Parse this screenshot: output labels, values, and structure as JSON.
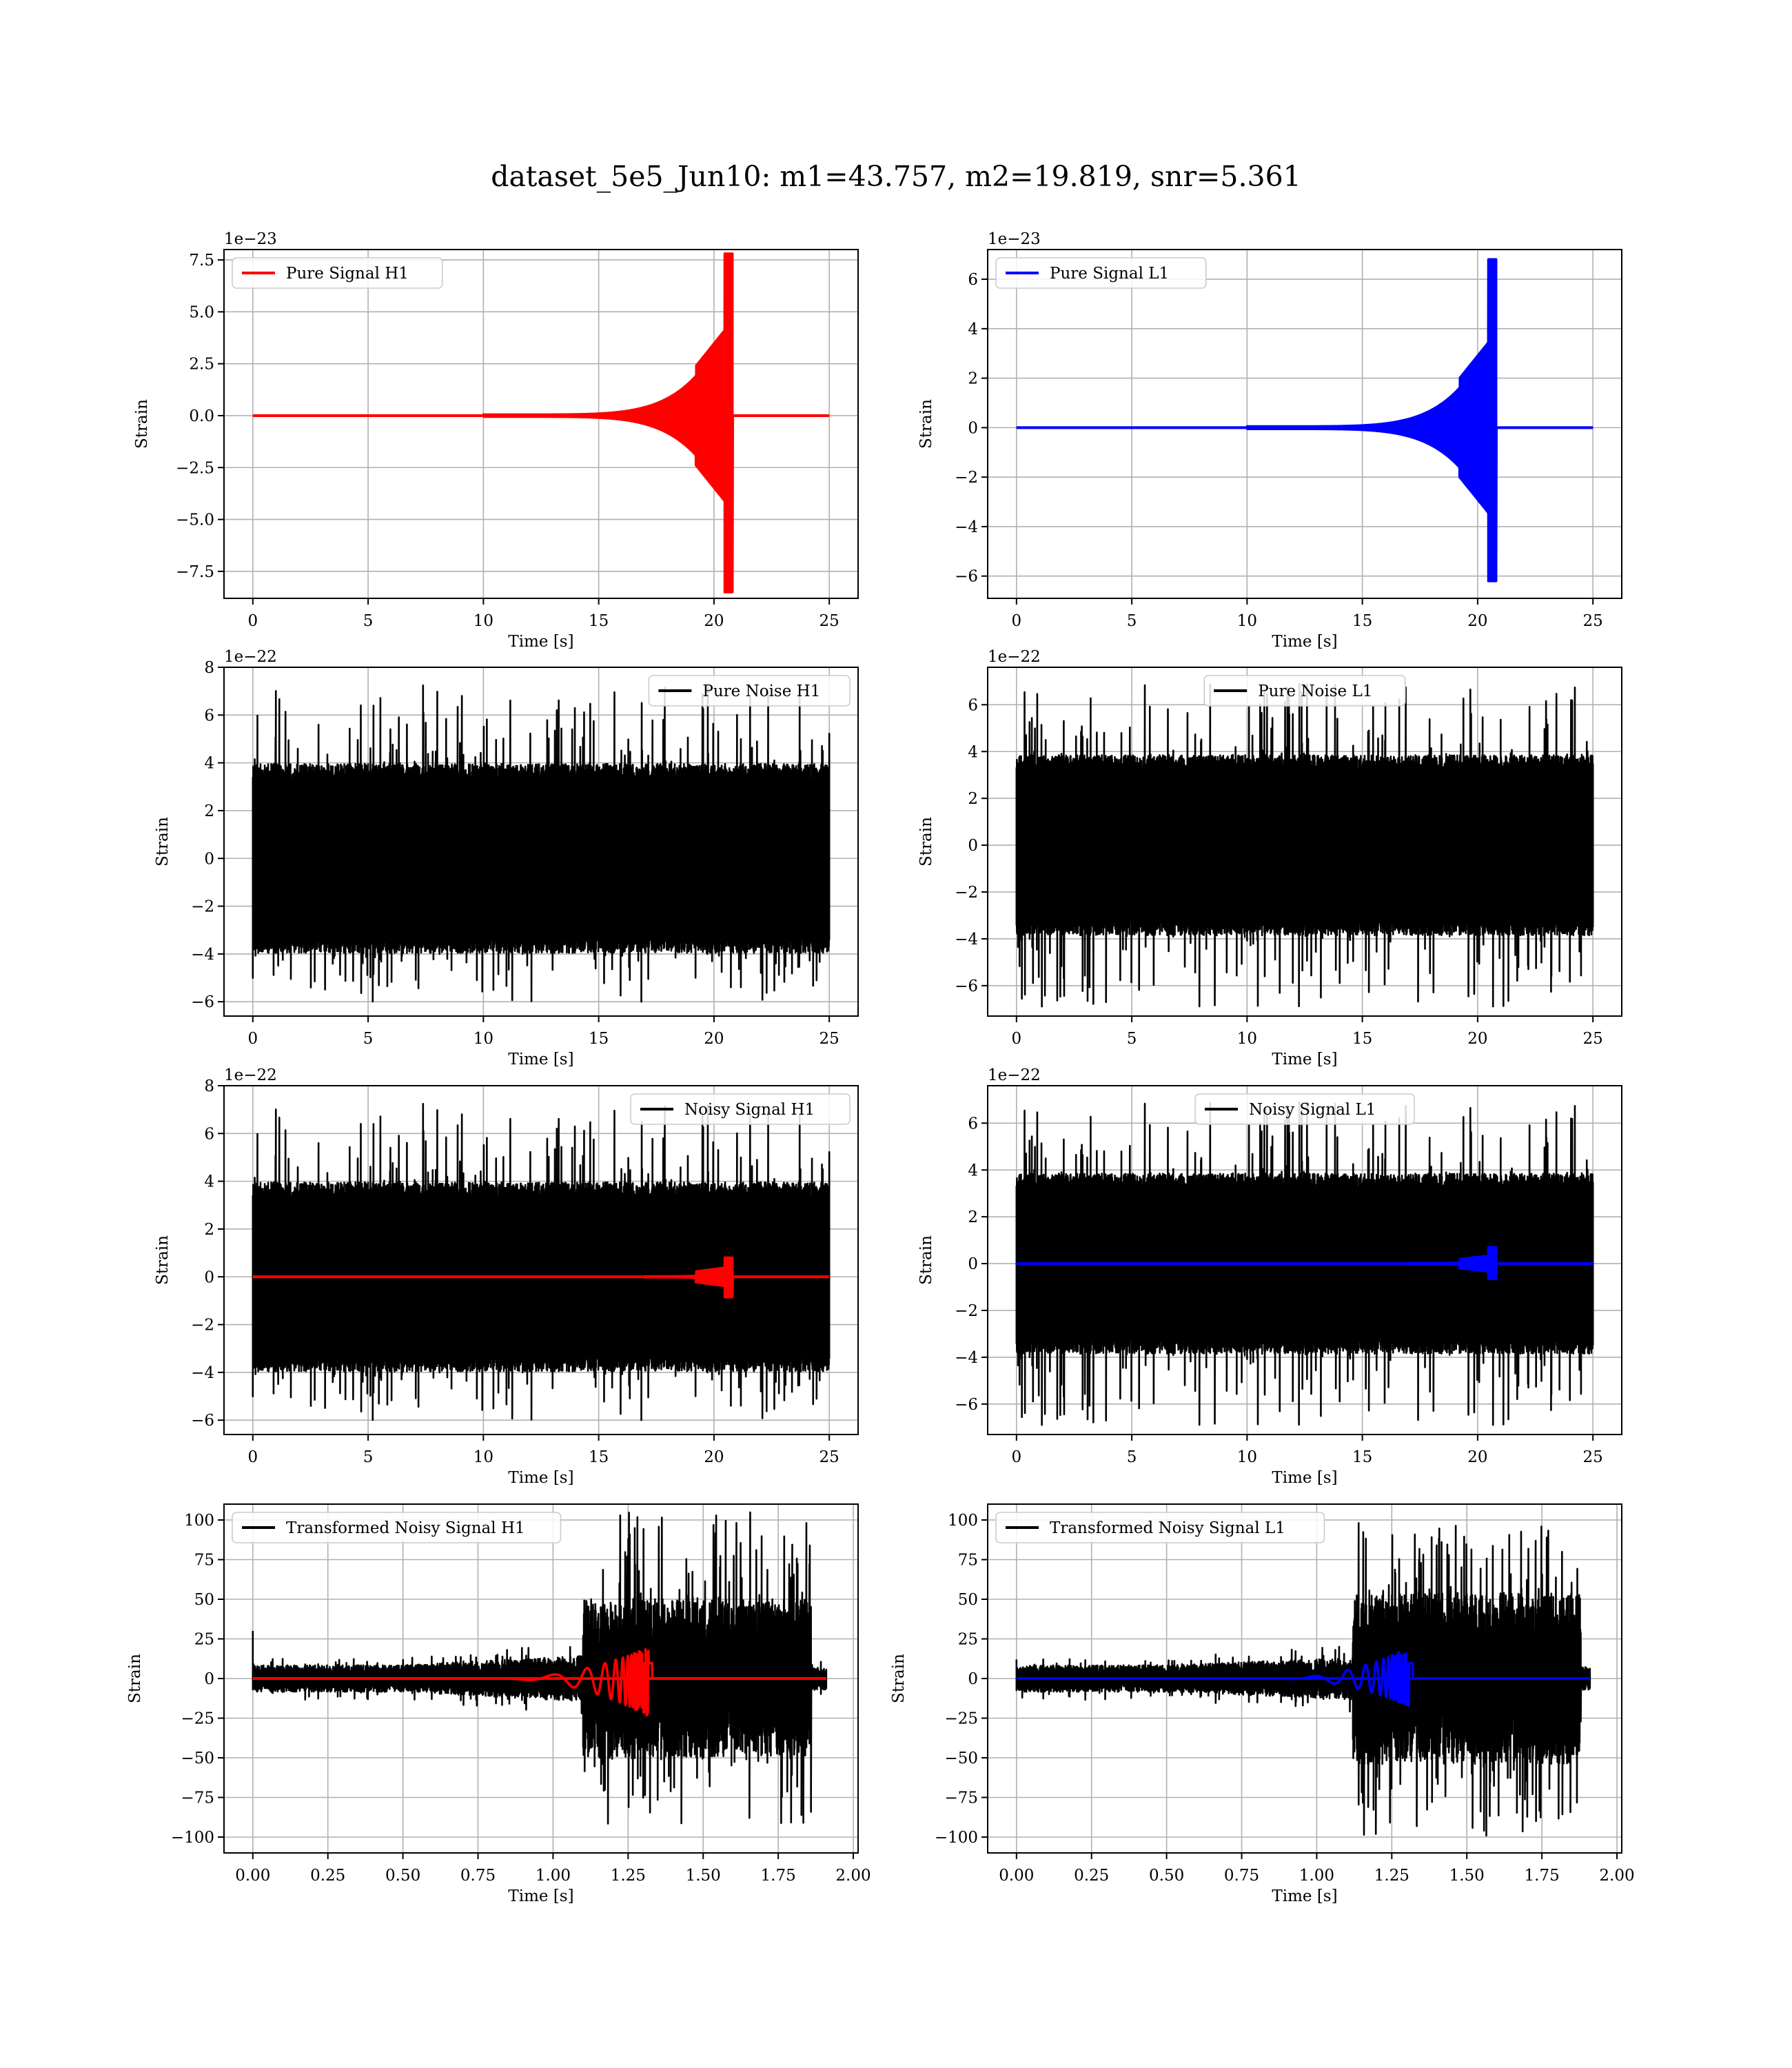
{
  "figure": {
    "suptitle": "dataset_5e5_Jun10: m1=43.757, m2=19.819, snr=5.361"
  },
  "colors": {
    "h1": "#ff0000",
    "l1": "#0000ff",
    "noise": "#000000",
    "grid": "#b0b0b0"
  },
  "chart_data": [
    {
      "id": "pure-signal-h1",
      "type": "line",
      "title": "",
      "xlabel": "Time [s]",
      "ylabel": "Strain",
      "offset_text": "1e−23",
      "xlim": [
        -1.25,
        26.25
      ],
      "ylim": [
        -8.8,
        8.0
      ],
      "xticks": [
        0,
        5,
        10,
        15,
        20,
        25
      ],
      "xtick_labels": [
        "0",
        "5",
        "10",
        "15",
        "20",
        "25"
      ],
      "yticks": [
        -7.5,
        -5.0,
        -2.5,
        0.0,
        2.5,
        5.0,
        7.5
      ],
      "ytick_labels": [
        "−7.5",
        "−5.0",
        "−2.5",
        "0.0",
        "2.5",
        "5.0",
        "7.5"
      ],
      "legend": {
        "placement": "upper-left",
        "entries": [
          {
            "label": "Pure Signal H1",
            "color": "#ff0000"
          }
        ]
      },
      "grid": true,
      "series": [
        {
          "name": "Pure Signal H1",
          "color": "#ff0000",
          "kind": "chirp",
          "x_range": [
            0,
            25
          ],
          "onset": 10,
          "merger": 20.6,
          "ringdown_end": 20.8,
          "peak_pos": 7.8,
          "peak_neg": -8.5,
          "plateau": 4.3,
          "floor": 0.05
        }
      ]
    },
    {
      "id": "pure-signal-l1",
      "type": "line",
      "title": "",
      "xlabel": "Time [s]",
      "ylabel": "Strain",
      "offset_text": "1e−23",
      "xlim": [
        -1.25,
        26.25
      ],
      "ylim": [
        -6.9,
        7.2
      ],
      "xticks": [
        0,
        5,
        10,
        15,
        20,
        25
      ],
      "xtick_labels": [
        "0",
        "5",
        "10",
        "15",
        "20",
        "25"
      ],
      "yticks": [
        -6,
        -4,
        -2,
        0,
        2,
        4,
        6
      ],
      "ytick_labels": [
        "−6",
        "−4",
        "−2",
        "0",
        "2",
        "4",
        "6"
      ],
      "legend": {
        "placement": "upper-left",
        "entries": [
          {
            "label": "Pure Signal L1",
            "color": "#0000ff"
          }
        ]
      },
      "grid": true,
      "series": [
        {
          "name": "Pure Signal L1",
          "color": "#0000ff",
          "kind": "chirp",
          "x_range": [
            0,
            25
          ],
          "onset": 10,
          "merger": 20.6,
          "ringdown_end": 20.8,
          "peak_pos": 6.8,
          "peak_neg": -6.2,
          "plateau": 3.6,
          "floor": 0.05
        }
      ]
    },
    {
      "id": "pure-noise-h1",
      "type": "line",
      "title": "",
      "xlabel": "Time [s]",
      "ylabel": "Strain",
      "offset_text": "1e−22",
      "xlim": [
        -1.25,
        26.25
      ],
      "ylim": [
        -6.6,
        8.0
      ],
      "xticks": [
        0,
        5,
        10,
        15,
        20,
        25
      ],
      "xtick_labels": [
        "0",
        "5",
        "10",
        "15",
        "20",
        "25"
      ],
      "yticks": [
        -6,
        -4,
        -2,
        0,
        2,
        4,
        6,
        8
      ],
      "ytick_labels": [
        "−6",
        "−4",
        "−2",
        "0",
        "2",
        "4",
        "6",
        "8"
      ],
      "legend": {
        "placement": "upper-right",
        "entries": [
          {
            "label": "Pure Noise H1",
            "color": "#000000"
          }
        ]
      },
      "grid": true,
      "series": [
        {
          "name": "Pure Noise H1",
          "color": "#000000",
          "kind": "noise",
          "x_range": [
            0,
            25
          ],
          "band": 3.6,
          "spike_max": 7.3,
          "spike_min": -6.0,
          "seed": 11
        }
      ]
    },
    {
      "id": "pure-noise-l1",
      "type": "line",
      "title": "",
      "xlabel": "Time [s]",
      "ylabel": "Strain",
      "offset_text": "1e−22",
      "xlim": [
        -1.25,
        26.25
      ],
      "ylim": [
        -7.3,
        7.6
      ],
      "xticks": [
        0,
        5,
        10,
        15,
        20,
        25
      ],
      "xtick_labels": [
        "0",
        "5",
        "10",
        "15",
        "20",
        "25"
      ],
      "yticks": [
        -6,
        -4,
        -2,
        0,
        2,
        4,
        6
      ],
      "ytick_labels": [
        "−6",
        "−4",
        "−2",
        "0",
        "2",
        "4",
        "6"
      ],
      "legend": {
        "placement": "upper-center",
        "entries": [
          {
            "label": "Pure Noise L1",
            "color": "#000000"
          }
        ]
      },
      "grid": true,
      "series": [
        {
          "name": "Pure Noise L1",
          "color": "#000000",
          "kind": "noise",
          "x_range": [
            0,
            25
          ],
          "band": 3.5,
          "spike_max": 6.9,
          "spike_min": -6.9,
          "seed": 23
        }
      ]
    },
    {
      "id": "noisy-signal-h1",
      "type": "line",
      "title": "",
      "xlabel": "Time [s]",
      "ylabel": "Strain",
      "offset_text": "1e−22",
      "xlim": [
        -1.25,
        26.25
      ],
      "ylim": [
        -6.6,
        8.0
      ],
      "xticks": [
        0,
        5,
        10,
        15,
        20,
        25
      ],
      "xtick_labels": [
        "0",
        "5",
        "10",
        "15",
        "20",
        "25"
      ],
      "yticks": [
        -6,
        -4,
        -2,
        0,
        2,
        4,
        6,
        8
      ],
      "ytick_labels": [
        "−6",
        "−4",
        "−2",
        "0",
        "2",
        "4",
        "6",
        "8"
      ],
      "legend": {
        "placement": "upper-right",
        "entries": [
          {
            "label": "Noisy Signal H1",
            "color": "#000000"
          }
        ]
      },
      "grid": true,
      "series": [
        {
          "name": "Noisy Signal H1",
          "color": "#000000",
          "kind": "noise",
          "x_range": [
            0,
            25
          ],
          "band": 3.6,
          "spike_max": 7.3,
          "spike_min": -6.0,
          "seed": 11
        },
        {
          "name": "",
          "color": "#ff0000",
          "kind": "chirp",
          "x_range": [
            0,
            25
          ],
          "onset": 17,
          "merger": 20.6,
          "ringdown_end": 20.8,
          "peak_pos": 0.8,
          "peak_neg": -0.85,
          "plateau": 0.4,
          "floor": 0.02
        }
      ]
    },
    {
      "id": "noisy-signal-l1",
      "type": "line",
      "title": "",
      "xlabel": "Time [s]",
      "ylabel": "Strain",
      "offset_text": "1e−22",
      "xlim": [
        -1.25,
        26.25
      ],
      "ylim": [
        -7.3,
        7.6
      ],
      "xticks": [
        0,
        5,
        10,
        15,
        20,
        25
      ],
      "xtick_labels": [
        "0",
        "5",
        "10",
        "15",
        "20",
        "25"
      ],
      "yticks": [
        -6,
        -4,
        -2,
        0,
        2,
        4,
        6
      ],
      "ytick_labels": [
        "−6",
        "−4",
        "−2",
        "0",
        "2",
        "4",
        "6"
      ],
      "legend": {
        "placement": "upper-center",
        "entries": [
          {
            "label": "Noisy Signal L1",
            "color": "#000000"
          }
        ]
      },
      "grid": true,
      "series": [
        {
          "name": "Noisy Signal L1",
          "color": "#000000",
          "kind": "noise",
          "x_range": [
            0,
            25
          ],
          "band": 3.5,
          "spike_max": 6.9,
          "spike_min": -6.9,
          "seed": 23
        },
        {
          "name": "",
          "color": "#0000ff",
          "kind": "chirp",
          "x_range": [
            0,
            25
          ],
          "onset": 17,
          "merger": 20.6,
          "ringdown_end": 20.8,
          "peak_pos": 0.7,
          "peak_neg": -0.65,
          "plateau": 0.35,
          "floor": 0.02
        }
      ]
    },
    {
      "id": "transformed-noisy-signal-h1",
      "type": "line",
      "title": "",
      "xlabel": "Time [s]",
      "ylabel": "Strain",
      "offset_text": "",
      "xlim": [
        -0.096,
        2.016
      ],
      "ylim": [
        -110,
        110
      ],
      "xticks": [
        0.0,
        0.25,
        0.5,
        0.75,
        1.0,
        1.25,
        1.5,
        1.75,
        2.0
      ],
      "xtick_labels": [
        "0.00",
        "0.25",
        "0.50",
        "0.75",
        "1.00",
        "1.25",
        "1.50",
        "1.75",
        "2.00"
      ],
      "yticks": [
        -100,
        -75,
        -50,
        -25,
        0,
        25,
        50,
        75,
        100
      ],
      "ytick_labels": [
        "−100",
        "−75",
        "−50",
        "−25",
        "0",
        "25",
        "50",
        "75",
        "100"
      ],
      "legend": {
        "placement": "upper-left",
        "entries": [
          {
            "label": "Transformed Noisy Signal H1",
            "color": "#000000"
          }
        ]
      },
      "grid": true,
      "series": [
        {
          "name": "Transformed Noisy Signal H1",
          "color": "#000000",
          "kind": "transformed_noise",
          "x_range": [
            0,
            1.91
          ],
          "start_spike": 30,
          "low_band": 7,
          "mid_band": 12,
          "burst_start": 1.1,
          "burst_end": 1.86,
          "burst_band": 42,
          "burst_max": 105,
          "burst_min": -93,
          "seed": 5
        },
        {
          "name": "",
          "color": "#ff0000",
          "kind": "osc_chirp",
          "x_range": [
            0,
            1.91
          ],
          "onset": 0.8,
          "peak_t": 1.32,
          "end_t": 1.33,
          "peak_pos": 20,
          "peak_neg": -24
        }
      ]
    },
    {
      "id": "transformed-noisy-signal-l1",
      "type": "line",
      "title": "",
      "xlabel": "Time [s]",
      "ylabel": "Strain",
      "offset_text": "",
      "xlim": [
        -0.096,
        2.016
      ],
      "ylim": [
        -110,
        110
      ],
      "xticks": [
        0.0,
        0.25,
        0.5,
        0.75,
        1.0,
        1.25,
        1.5,
        1.75,
        2.0
      ],
      "xtick_labels": [
        "0.00",
        "0.25",
        "0.50",
        "0.75",
        "1.00",
        "1.25",
        "1.50",
        "1.75",
        "2.00"
      ],
      "yticks": [
        -100,
        -75,
        -50,
        -25,
        0,
        25,
        50,
        75,
        100
      ],
      "ytick_labels": [
        "−100",
        "−75",
        "−50",
        "−25",
        "0",
        "25",
        "50",
        "75",
        "100"
      ],
      "legend": {
        "placement": "upper-left",
        "entries": [
          {
            "label": "Transformed Noisy Signal L1",
            "color": "#000000"
          }
        ]
      },
      "grid": true,
      "series": [
        {
          "name": "Transformed Noisy Signal L1",
          "color": "#000000",
          "kind": "transformed_noise",
          "x_range": [
            0,
            1.91
          ],
          "start_spike": 12,
          "low_band": 7,
          "mid_band": 11,
          "burst_start": 1.12,
          "burst_end": 1.88,
          "burst_band": 45,
          "burst_max": 100,
          "burst_min": -100,
          "seed": 17
        },
        {
          "name": "",
          "color": "#0000ff",
          "kind": "osc_chirp",
          "x_range": [
            0,
            1.91
          ],
          "onset": 0.85,
          "peak_t": 1.31,
          "end_t": 1.32,
          "peak_pos": 20,
          "peak_neg": -18
        }
      ]
    }
  ]
}
